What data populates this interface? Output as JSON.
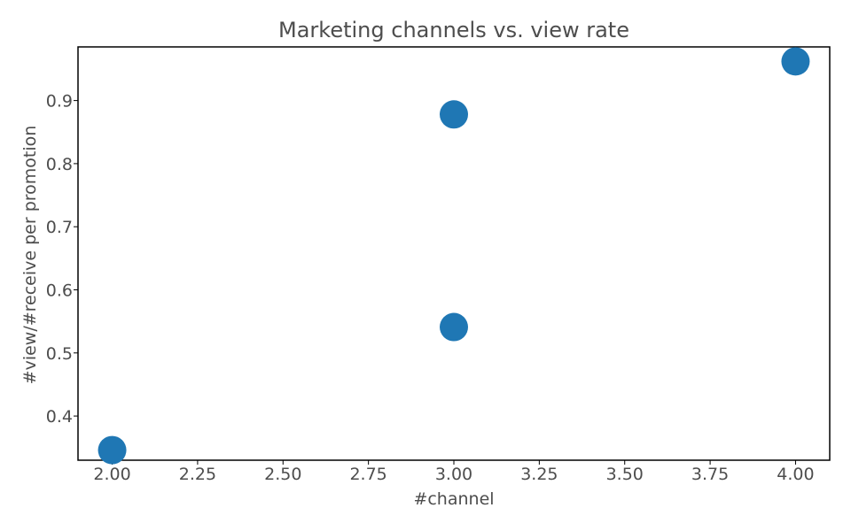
{
  "chart_data": {
    "type": "scatter",
    "title": "Marketing channels vs. view rate",
    "xlabel": "#channel",
    "ylabel": "#view/#receive per promotion",
    "xlim": [
      1.9,
      4.1
    ],
    "ylim": [
      0.33,
      0.985
    ],
    "xticks": [
      2.0,
      2.25,
      2.5,
      2.75,
      3.0,
      3.25,
      3.5,
      3.75,
      4.0
    ],
    "xtick_labels": [
      "2.00",
      "2.25",
      "2.50",
      "2.75",
      "3.00",
      "3.25",
      "3.50",
      "3.75",
      "4.00"
    ],
    "yticks": [
      0.4,
      0.5,
      0.6,
      0.7,
      0.8,
      0.9
    ],
    "ytick_labels": [
      "0.4",
      "0.5",
      "0.6",
      "0.7",
      "0.8",
      "0.9"
    ],
    "grid": false,
    "series": [
      {
        "color": "#1f77b4",
        "points": [
          {
            "x": 2.0,
            "y": 0.346
          },
          {
            "x": 3.0,
            "y": 0.541
          },
          {
            "x": 3.0,
            "y": 0.878
          },
          {
            "x": 4.0,
            "y": 0.962
          }
        ]
      }
    ]
  }
}
